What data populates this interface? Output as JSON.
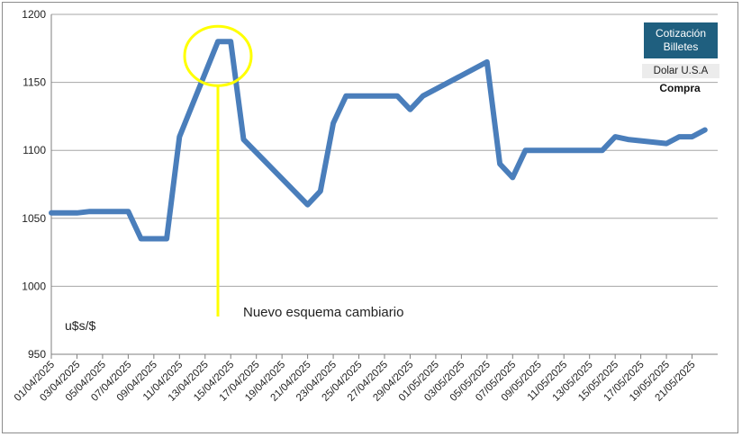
{
  "legend": {
    "title": "Cotización Billetes",
    "subtitle": "Dolar U.S.A",
    "subtitle2": "Compra"
  },
  "unit_label": "u$s/$",
  "annotation": "Nuevo esquema cambiario",
  "colors": {
    "series": "#4a7ebb",
    "highlight": "#ffff00",
    "legend_bg": "#1f5f7f",
    "grid": "#a6a6a6"
  },
  "chart_data": {
    "type": "line",
    "x_labels": [
      "01/04/2025",
      "03/04/2025",
      "05/04/2025",
      "07/04/2025",
      "09/04/2025",
      "11/04/2025",
      "13/04/2025",
      "15/04/2025",
      "17/04/2025",
      "19/04/2025",
      "21/04/2025",
      "23/04/2025",
      "25/04/2025",
      "27/04/2025",
      "29/04/2025",
      "01/05/2025",
      "03/05/2025",
      "05/05/2025",
      "07/05/2025",
      "09/05/2025",
      "11/05/2025",
      "13/05/2025",
      "15/05/2025",
      "17/05/2025",
      "19/05/2025",
      "21/05/2025"
    ],
    "x": [
      "01/04/2025",
      "02/04/2025",
      "03/04/2025",
      "04/04/2025",
      "07/04/2025",
      "08/04/2025",
      "09/04/2025",
      "10/04/2025",
      "11/04/2025",
      "14/04/2025",
      "15/04/2025",
      "16/04/2025",
      "21/04/2025",
      "22/04/2025",
      "23/04/2025",
      "24/04/2025",
      "25/04/2025",
      "28/04/2025",
      "29/04/2025",
      "30/04/2025",
      "05/05/2025",
      "06/05/2025",
      "07/05/2025",
      "08/05/2025",
      "09/05/2025",
      "12/05/2025",
      "13/05/2025",
      "14/05/2025",
      "15/05/2025",
      "16/05/2025",
      "19/05/2025",
      "20/05/2025",
      "21/05/2025",
      "22/05/2025"
    ],
    "series": [
      {
        "values": [
          1054,
          1054,
          1054,
          1055,
          1055,
          1035,
          1035,
          1035,
          1110,
          1180,
          1180,
          1108,
          1060,
          1070,
          1120,
          1140,
          1140,
          1140,
          1130,
          1140,
          1165,
          1090,
          1080,
          1100,
          1100,
          1100,
          1100,
          1100,
          1110,
          1108,
          1105,
          1110,
          1110,
          1115
        ]
      }
    ],
    "ylim": [
      950,
      1200
    ],
    "yticks": [
      950,
      1000,
      1050,
      1100,
      1150,
      1200
    ],
    "highlight_date": "14/04/2025",
    "grid": true,
    "legend_position": "top-right"
  }
}
